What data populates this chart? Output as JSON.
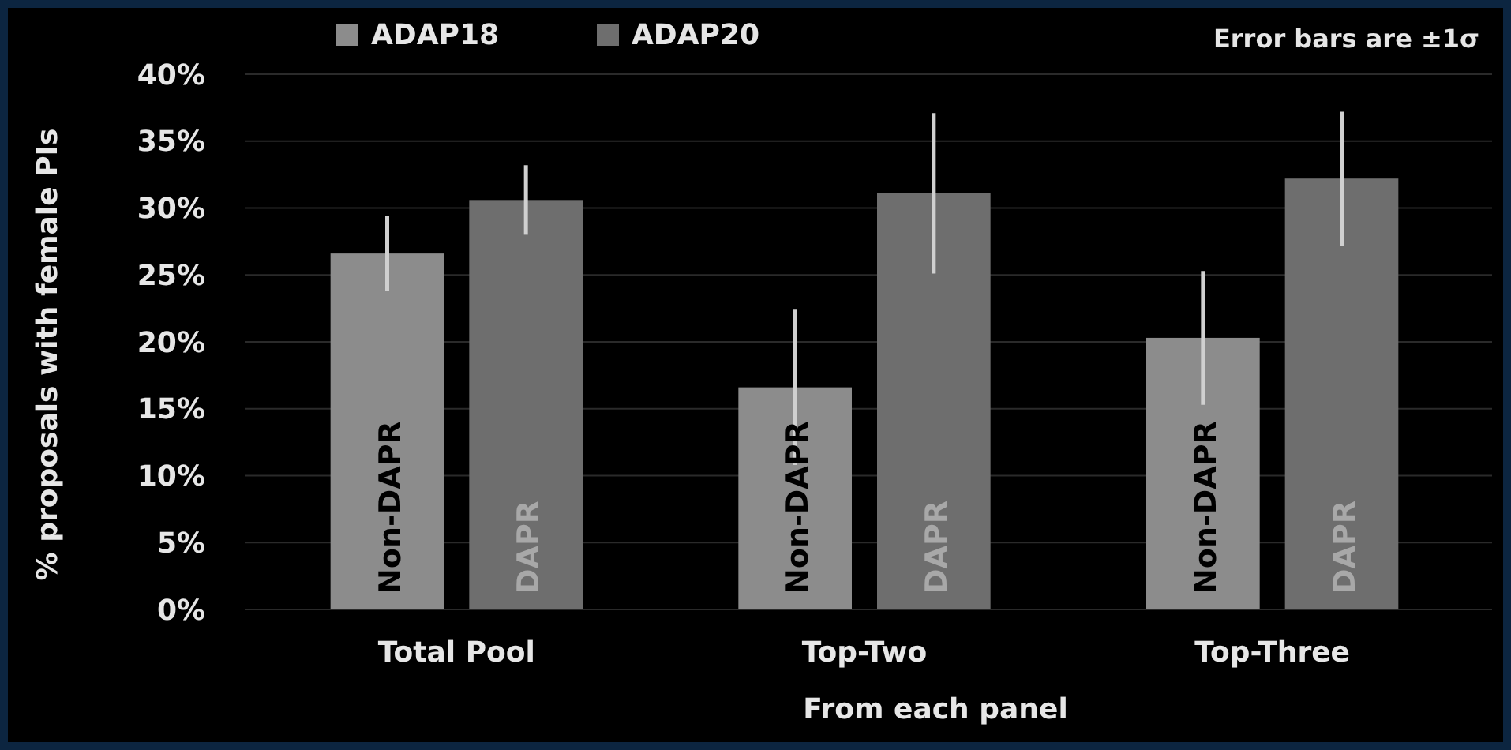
{
  "chart_data": {
    "type": "bar",
    "xlabel": "From each panel",
    "ylabel": "% proposals with female PIs",
    "categories": [
      "Total Pool",
      "Top-Two",
      "Top-Three"
    ],
    "series": [
      {
        "name": "ADAP18",
        "color": "#8c8c8c",
        "values": [
          26.6,
          16.6,
          20.3
        ],
        "errors": [
          2.8,
          5.8,
          5.0
        ],
        "value_labels": [
          "Non-DAPR",
          "Non-DAPR",
          "Non-DAPR"
        ]
      },
      {
        "name": "ADAP20",
        "color": "#6e6e6e",
        "values": [
          30.6,
          31.1,
          32.2
        ],
        "errors": [
          2.6,
          6.0,
          5.0
        ],
        "value_labels": [
          "DAPR",
          "DAPR",
          "DAPR"
        ]
      }
    ],
    "ylim": [
      0,
      40
    ],
    "yticks": [
      {
        "value": 0,
        "label": "0%"
      },
      {
        "value": 5,
        "label": "5%"
      },
      {
        "value": 10,
        "label": "10%"
      },
      {
        "value": 15,
        "label": "15%"
      },
      {
        "value": 20,
        "label": "20%"
      },
      {
        "value": 25,
        "label": "25%"
      },
      {
        "value": 30,
        "label": "30%"
      },
      {
        "value": 35,
        "label": "35%"
      },
      {
        "value": 40,
        "label": "40%"
      }
    ],
    "grid": "y",
    "legend": "top",
    "annotations": [
      "Error bars are ±1σ"
    ]
  }
}
